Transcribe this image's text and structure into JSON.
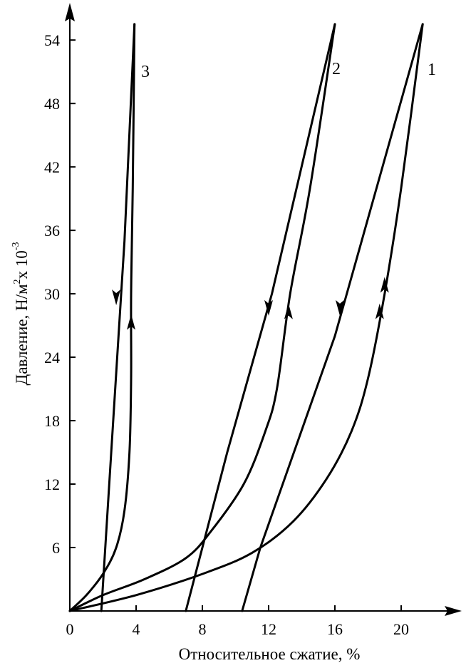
{
  "chart_data": {
    "type": "line",
    "title": "",
    "xlabel": "Относительное сжатие, %",
    "ylabel_main": "Давление, Н/м",
    "ylabel_sup1": "2",
    "ylabel_mid": "х 10",
    "ylabel_sup2": "-3",
    "xlim": [
      0,
      24
    ],
    "ylim": [
      0,
      56
    ],
    "x_ticks": [
      0,
      4,
      8,
      12,
      16,
      20
    ],
    "y_ticks": [
      6,
      12,
      18,
      24,
      30,
      36,
      42,
      48,
      54
    ],
    "x_tick_labels": [
      "0",
      "4",
      "8",
      "12",
      "16",
      "20"
    ],
    "y_tick_labels": [
      "6",
      "12",
      "18",
      "24",
      "30",
      "36",
      "42",
      "48",
      "54"
    ],
    "grid": false,
    "series": [
      {
        "name": "1",
        "loading": [
          [
            0,
            0
          ],
          [
            4,
            1.5
          ],
          [
            8,
            3.5
          ],
          [
            11,
            5.5
          ],
          [
            13.5,
            8.5
          ],
          [
            15.5,
            12.5
          ],
          [
            17,
            17
          ],
          [
            18,
            22
          ],
          [
            19,
            30
          ],
          [
            20,
            40
          ],
          [
            21.3,
            55.5
          ]
        ],
        "unloading": [
          [
            21.3,
            55.5
          ],
          [
            16,
            26
          ],
          [
            11.5,
            6
          ],
          [
            10.4,
            0
          ]
        ],
        "arrows": [
          {
            "x": 18.7,
            "y": 28,
            "dir": "up"
          },
          {
            "x": 19.0,
            "y": 30.5,
            "dir": "up"
          },
          {
            "x": 16.3,
            "y": 29,
            "dir": "down"
          }
        ]
      },
      {
        "name": "2",
        "loading": [
          [
            0,
            0
          ],
          [
            2,
            1.5
          ],
          [
            4.5,
            3
          ],
          [
            7,
            5
          ],
          [
            8.5,
            7.5
          ],
          [
            10.5,
            12
          ],
          [
            11.8,
            17
          ],
          [
            12.5,
            21
          ],
          [
            13.3,
            30
          ],
          [
            14.5,
            40
          ],
          [
            16,
            55.5
          ]
        ],
        "unloading": [
          [
            16,
            55.5
          ],
          [
            12.2,
            30
          ],
          [
            9.5,
            15
          ],
          [
            7.0,
            0
          ]
        ],
        "arrows": [
          {
            "x": 13.2,
            "y": 28,
            "dir": "up"
          },
          {
            "x": 12.0,
            "y": 29,
            "dir": "down"
          }
        ]
      },
      {
        "name": "3",
        "loading": [
          [
            0,
            0
          ],
          [
            1,
            1.5
          ],
          [
            2,
            3.5
          ],
          [
            2.8,
            6
          ],
          [
            3.3,
            9.5
          ],
          [
            3.6,
            15
          ],
          [
            3.7,
            22
          ],
          [
            3.7,
            30
          ],
          [
            3.8,
            40
          ],
          [
            3.9,
            55.5
          ]
        ],
        "unloading": [
          [
            3.9,
            55.5
          ],
          [
            3.3,
            35
          ],
          [
            2.5,
            15
          ],
          [
            1.9,
            0
          ]
        ],
        "arrows": [
          {
            "x": 3.7,
            "y": 27,
            "dir": "up"
          },
          {
            "x": 2.8,
            "y": 30,
            "dir": "down"
          }
        ]
      }
    ]
  }
}
